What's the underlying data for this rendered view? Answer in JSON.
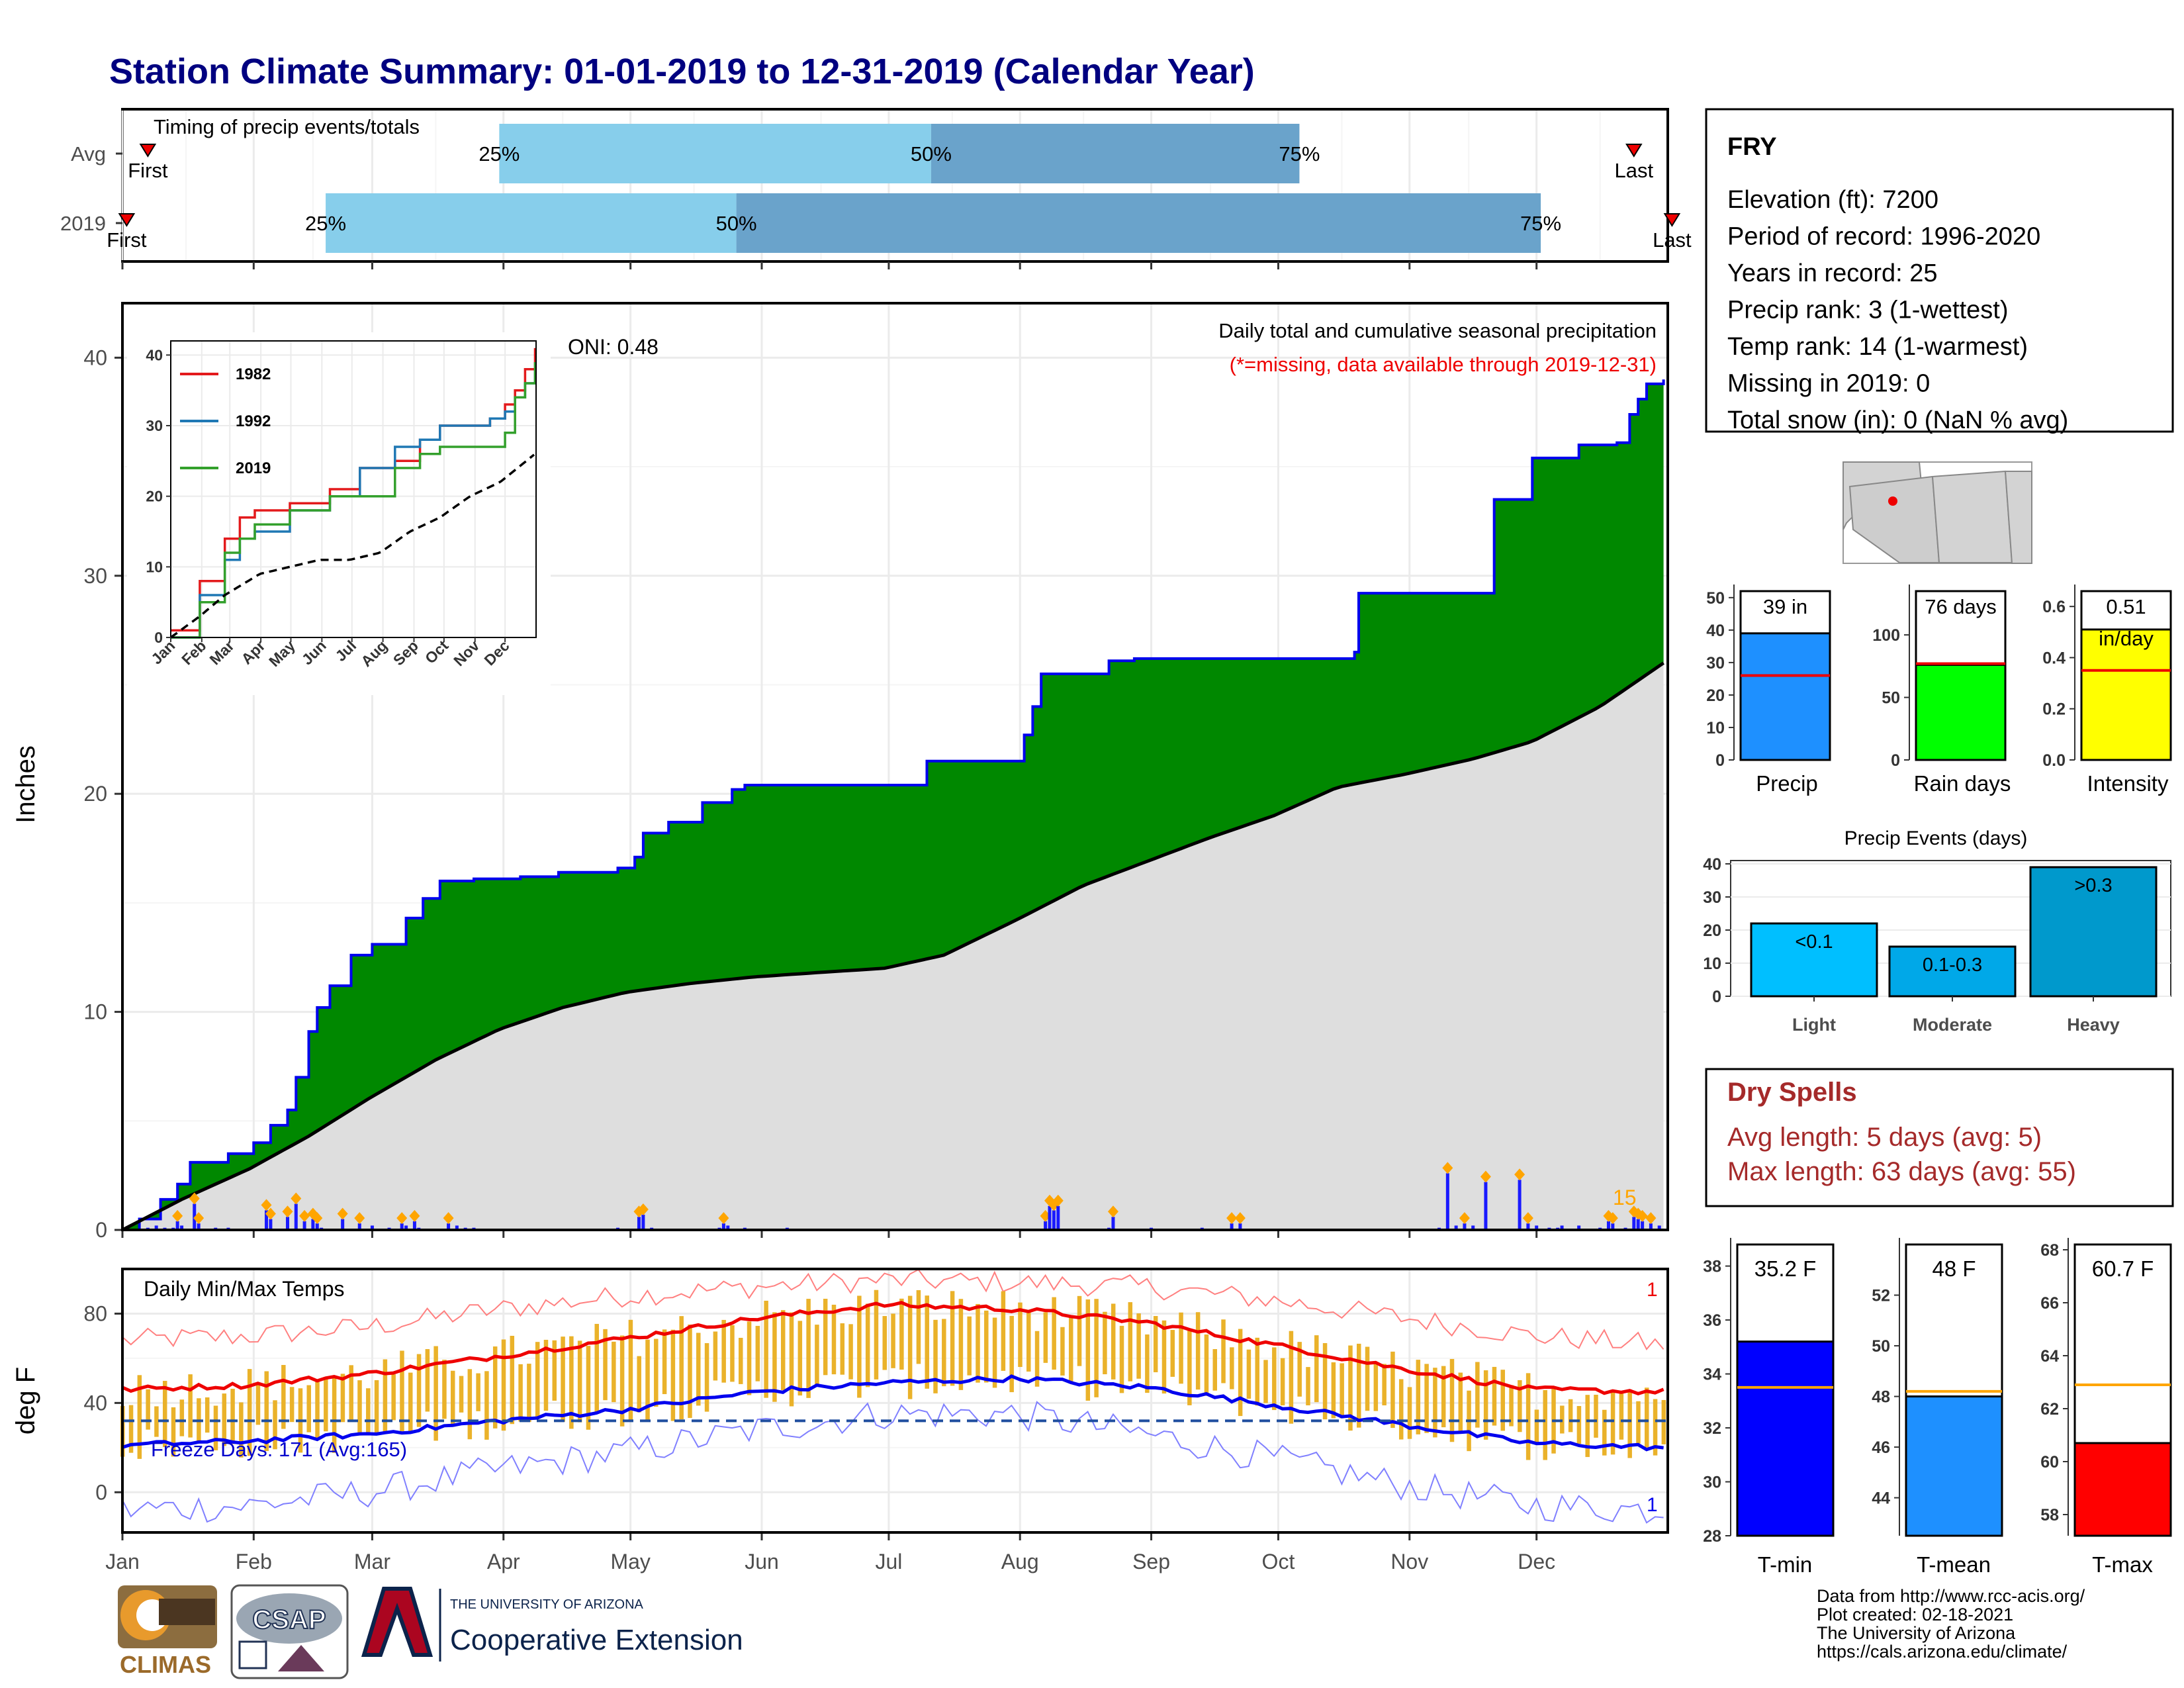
{
  "title": "Station Climate Summary: 01-01-2019 to 12-31-2019 (Calendar Year)",
  "colors": {
    "title": "#000080",
    "timing_light": "#87ceeb",
    "timing_dark": "#6aa3cb",
    "precip_area": "#008800",
    "normal_area": "#dedede",
    "outline_blue": "#0000ee",
    "bar_blue": "#1a1aff",
    "diamond": "#ffa500",
    "missing_red": "#ee0000",
    "tmax_line": "#ee0000",
    "tmin_line": "#0000ee",
    "temp_bar": "#eab22a",
    "dry_spells": "#a52a2a"
  },
  "timing": {
    "title": "Timing of precip events/totals",
    "rows": [
      {
        "label": "Avg",
        "first_day": 7,
        "q25": 90,
        "q50": 192,
        "q75": 279,
        "last_day": 358,
        "first_label": "First",
        "last_label": "Last",
        "q25_label": "25%",
        "q50_label": "50%",
        "q75_label": "75%"
      },
      {
        "label": "2019",
        "first_day": 2,
        "q25": 49,
        "q50": 146,
        "q75": 336,
        "last_day": 367,
        "first_label": "First",
        "last_label": "Last",
        "q25_label": "25%",
        "q50_label": "50%",
        "q75_label": "75%"
      }
    ]
  },
  "station": {
    "name": "FRY",
    "lines": [
      "Elevation (ft): 7200",
      "Period of record: 1996-2020",
      "Years in record: 25",
      "Precip rank: 3 (1-wettest)",
      "Temp rank: 14 (1-warmest)",
      "Missing in 2019: 0",
      "Total snow (in): 0 (NaN % avg)"
    ]
  },
  "precip_panel": {
    "ylabel": "Inches",
    "note1": "Daily total and cumulative seasonal precipitation",
    "note2": "(*=missing, data available through 2019-12-31)",
    "oni": "ONI: 0.48",
    "count_label": "15",
    "y_ticks": [
      "0",
      "10",
      "20",
      "30",
      "40"
    ]
  },
  "inset": {
    "series_names": [
      "1982",
      "1992",
      "2019"
    ],
    "series_colors": [
      "#e31a1c",
      "#1f78b4",
      "#33a02c"
    ],
    "y_ticks": [
      "0",
      "10",
      "20",
      "30",
      "40"
    ],
    "months": [
      "Jan",
      "Feb",
      "Mar",
      "Apr",
      "May",
      "Jun",
      "Jul",
      "Aug",
      "Sep",
      "Oct",
      "Nov",
      "Dec"
    ]
  },
  "temp_panel": {
    "title": "Daily Min/Max Temps",
    "ylabel": "deg F",
    "freeze_label": "Freeze Days: 171 (Avg:165)",
    "freeze_value": 32,
    "corner_label_top": "1",
    "corner_label_bottom": "1",
    "y_ticks": [
      "0",
      "40",
      "80"
    ]
  },
  "months": [
    "Jan",
    "Feb",
    "Mar",
    "Apr",
    "May",
    "Jun",
    "Jul",
    "Aug",
    "Sep",
    "Oct",
    "Nov",
    "Dec"
  ],
  "mini_bars": [
    {
      "title_value": "39 in",
      "category": "Precip",
      "value": 39,
      "avg": 26,
      "ymax": 52,
      "ticks": [
        "0",
        "10",
        "20",
        "30",
        "40",
        "50"
      ],
      "tick_values": [
        0,
        10,
        20,
        30,
        40,
        50
      ],
      "color": "#1e90ff"
    },
    {
      "title_value": "76 days",
      "category": "Rain days",
      "value": 76,
      "avg": 77,
      "ymax": 135,
      "ticks": [
        "0",
        "50",
        "100"
      ],
      "tick_values": [
        0,
        50,
        100
      ],
      "color": "#00ff00"
    },
    {
      "title_value": "0.51",
      "category": "Intensity",
      "value": 0.51,
      "avg": 0.35,
      "ymax": 0.66,
      "ticks": [
        "0.0",
        "0.2",
        "0.4",
        "0.6"
      ],
      "tick_values": [
        0,
        0.2,
        0.4,
        0.6
      ],
      "color": "#ffff00",
      "unit": "in/day"
    }
  ],
  "precip_events": {
    "title": "Precip Events (days)",
    "categories": [
      "Light",
      "Moderate",
      "Heavy"
    ],
    "values": [
      22,
      15,
      39
    ],
    "labels": [
      "<0.1",
      "0.1-0.3",
      ">0.3"
    ],
    "colors": [
      "#00bfff",
      "#00a8e8",
      "#0099cc"
    ],
    "ticks": [
      "0",
      "10",
      "20",
      "30",
      "40"
    ],
    "ymax": 41
  },
  "dry_spells": {
    "title": "Dry Spells",
    "line1": "Avg length: 5 days (avg: 5)",
    "line2": "Max length: 63 days (avg: 55)"
  },
  "temp_bars": [
    {
      "title_value": "35.2 F",
      "category": "T-min",
      "value": 35.2,
      "avg": 33.5,
      "ymin": 28,
      "ymax": 38.8,
      "ticks": [
        "28",
        "30",
        "32",
        "34",
        "36",
        "38"
      ],
      "tick_values": [
        28,
        30,
        32,
        34,
        36,
        38
      ],
      "color": "#0000ff"
    },
    {
      "title_value": "48 F",
      "category": "T-mean",
      "value": 48,
      "avg": 48.2,
      "ymin": 42.5,
      "ymax": 54,
      "ticks": [
        "44",
        "46",
        "48",
        "50",
        "52"
      ],
      "tick_values": [
        44,
        46,
        48,
        50,
        52
      ],
      "color": "#1e90ff"
    },
    {
      "title_value": "60.7 F",
      "category": "T-max",
      "value": 60.7,
      "avg": 62.9,
      "ymin": 57.2,
      "ymax": 68.2,
      "ticks": [
        "58",
        "60",
        "62",
        "64",
        "66",
        "68"
      ],
      "tick_values": [
        58,
        60,
        62,
        64,
        66,
        68
      ],
      "color": "#ff0000"
    }
  ],
  "footer": {
    "lines": [
      "Data from http://www.rcc-acis.org/",
      "Plot created: 02-18-2021",
      "The University of Arizona",
      "https://cals.arizona.edu/climate/"
    ],
    "logo_climas": "CLIMAS",
    "logo_csap": "CSAP",
    "ua_small": "THE UNIVERSITY OF ARIZONA",
    "ua_big": "Cooperative Extension"
  },
  "chart_data": [
    {
      "type": "area",
      "title": "Daily total and cumulative seasonal precipitation",
      "ylabel": "Inches",
      "ylim": [
        0,
        42.5
      ],
      "x_unit": "day of year",
      "cumulative_2019": {
        "x": [
          1,
          5,
          10,
          14,
          17,
          26,
          32,
          36,
          40,
          42,
          45,
          47,
          50,
          55,
          60,
          68,
          72,
          76,
          84,
          95,
          104,
          118,
          122,
          124,
          130,
          138,
          145,
          148,
          184,
          191,
          214,
          216,
          218,
          234,
          240,
          265,
          292,
          293,
          325,
          334,
          345,
          354,
          357,
          359,
          361,
          365
        ],
        "y": [
          0,
          0.5,
          1.4,
          2.1,
          3.1,
          3.5,
          4,
          4.8,
          5.5,
          7,
          9.1,
          10.2,
          11.2,
          12.6,
          13.1,
          14.3,
          15.2,
          16.0,
          16.1,
          16.2,
          16.4,
          16.6,
          17.1,
          18.2,
          18.7,
          19.6,
          20.2,
          20.4,
          20.4,
          21.5,
          22.7,
          24.0,
          25.5,
          26.1,
          26.2,
          26.2,
          26.5,
          29.2,
          33.5,
          35.4,
          36.0,
          36.1,
          37.4,
          38.1,
          38.8,
          39.0
        ]
      },
      "normal_cumulative": {
        "x": [
          1,
          15,
          31,
          45,
          59,
          75,
          90,
          105,
          120,
          135,
          150,
          165,
          181,
          195,
          212,
          228,
          243,
          258,
          273,
          288,
          304,
          320,
          334,
          350,
          365
        ],
        "y": [
          0,
          1.4,
          2.8,
          4.3,
          6.0,
          7.8,
          9.2,
          10.2,
          10.9,
          11.3,
          11.6,
          11.8,
          12.0,
          12.6,
          14.2,
          15.8,
          16.9,
          18.0,
          19.0,
          20.3,
          20.9,
          21.6,
          22.4,
          24.0,
          26.0
        ]
      },
      "daily_bars": {
        "x": [
          7,
          9,
          11,
          13,
          14,
          15,
          18,
          19,
          23,
          26,
          35,
          36,
          40,
          42,
          44,
          46,
          47,
          48,
          53,
          57,
          60,
          64,
          67,
          68,
          70,
          71,
          78,
          80,
          82,
          84,
          102,
          118,
          123,
          124,
          126,
          142,
          143,
          144,
          148,
          152,
          158,
          163,
          183,
          201,
          219,
          220,
          221,
          222,
          234,
          235,
          244,
          247,
          252,
          256,
          263,
          265,
          312,
          314,
          316,
          318,
          320,
          323,
          331,
          333,
          335,
          338,
          340,
          341,
          342,
          345,
          350,
          352,
          353,
          356,
          358,
          359,
          360,
          362,
          364
        ],
        "y": [
          0.1,
          0.2,
          0.1,
          0.1,
          0.4,
          0.2,
          1.2,
          0.3,
          0.1,
          0.1,
          0.9,
          0.5,
          0.6,
          1.2,
          0.4,
          0.5,
          0.3,
          0.1,
          0.5,
          0.3,
          0.2,
          0.1,
          0.3,
          0.2,
          0.4,
          0.1,
          0.3,
          0.2,
          0.1,
          0.1,
          0.05,
          0.1,
          0.6,
          0.7,
          0.1,
          0.1,
          0.3,
          0.2,
          0.1,
          0.05,
          0.1,
          0.05,
          0.05,
          0.05,
          0.4,
          1.1,
          0.9,
          1.1,
          0.1,
          0.6,
          0.1,
          0.05,
          0.05,
          0.1,
          0.3,
          0.3,
          0.1,
          2.6,
          0.2,
          0.3,
          0.2,
          2.2,
          2.3,
          0.3,
          0.2,
          0.1,
          0.1,
          0.2,
          0.05,
          0.2,
          0.1,
          0.4,
          0.3,
          0.1,
          0.6,
          0.5,
          0.4,
          0.3,
          0.2
        ]
      }
    },
    {
      "type": "line",
      "title": "Cumulative precipitation comparison",
      "ylim": [
        0,
        42
      ],
      "series": [
        {
          "name": "1982",
          "x": [
            1,
            30,
            55,
            70,
            85,
            120,
            160,
            190,
            225,
            250,
            270,
            300,
            320,
            335,
            345,
            355,
            365
          ],
          "y": [
            1,
            8,
            14,
            17,
            18,
            19,
            21,
            24,
            25,
            28,
            30,
            30,
            31,
            33,
            35,
            38,
            41
          ]
        },
        {
          "name": "1992",
          "x": [
            1,
            30,
            55,
            70,
            85,
            120,
            160,
            190,
            225,
            250,
            270,
            300,
            320,
            335,
            345,
            355,
            365
          ],
          "y": [
            0,
            6,
            11,
            14,
            15,
            18,
            20,
            24,
            27,
            28,
            30,
            30,
            31,
            32,
            34,
            36,
            38
          ]
        },
        {
          "name": "2019",
          "x": [
            1,
            30,
            55,
            70,
            85,
            120,
            160,
            190,
            225,
            250,
            270,
            300,
            320,
            335,
            345,
            355,
            365
          ],
          "y": [
            0,
            5,
            12,
            14,
            16,
            18,
            20,
            20,
            24,
            26,
            27,
            27,
            27,
            29,
            34,
            36,
            39
          ]
        },
        {
          "name": "",
          "x": [
            1,
            30,
            55,
            90,
            120,
            150,
            180,
            210,
            240,
            270,
            300,
            330,
            365
          ],
          "y": [
            0,
            3,
            6,
            9,
            10,
            11,
            11,
            12,
            15,
            17,
            20,
            22,
            26
          ]
        }
      ]
    },
    {
      "type": "line",
      "title": "Daily Min/Max Temps",
      "ylabel": "deg F",
      "ylim": [
        -18,
        100
      ],
      "series": [
        {
          "name": "",
          "x": [
            1,
            31,
            59,
            90,
            120,
            151,
            181,
            212,
            243,
            273,
            304,
            334,
            365
          ],
          "y": [
            46,
            48,
            53,
            61,
            69,
            78,
            84,
            82,
            76,
            66,
            55,
            46,
            45
          ]
        },
        {
          "name": "",
          "x": [
            1,
            31,
            59,
            90,
            120,
            151,
            181,
            212,
            243,
            273,
            304,
            334,
            365
          ],
          "y": [
            21,
            23,
            26,
            32,
            37,
            45,
            49,
            51,
            47,
            39,
            30,
            22,
            20
          ]
        },
        {
          "name": "",
          "x": [
            1,
            31,
            59,
            90,
            120,
            151,
            181,
            212,
            243,
            273,
            304,
            334,
            365
          ],
          "y": [
            68,
            70,
            74,
            82,
            88,
            92,
            95,
            94,
            92,
            86,
            78,
            70,
            66
          ]
        },
        {
          "name": "",
          "x": [
            1,
            31,
            59,
            90,
            120,
            151,
            181,
            212,
            243,
            273,
            304,
            334,
            365
          ],
          "y": [
            -8,
            -6,
            0,
            10,
            18,
            28,
            35,
            35,
            26,
            15,
            3,
            -6,
            -8
          ]
        }
      ]
    },
    {
      "type": "bar",
      "title": "Precip Events (days)",
      "categories": [
        "Light",
        "Moderate",
        "Heavy"
      ],
      "values": [
        22,
        15,
        39
      ],
      "ylim": [
        0,
        41
      ]
    },
    {
      "type": "bar",
      "categories": [
        "Precip",
        "Rain days",
        "Intensity"
      ],
      "values": [
        39,
        76,
        0.51
      ]
    },
    {
      "type": "bar",
      "categories": [
        "T-min",
        "T-mean",
        "T-max"
      ],
      "values": [
        35.2,
        48,
        60.7
      ]
    }
  ]
}
